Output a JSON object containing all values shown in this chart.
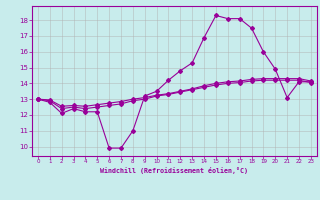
{
  "bg_color": "#c8ecec",
  "line_color": "#990099",
  "grid_color": "#b0b0b0",
  "xlabel": "Windchill (Refroidissement éolien,°C)",
  "x_ticks": [
    0,
    1,
    2,
    3,
    4,
    5,
    6,
    7,
    8,
    9,
    10,
    11,
    12,
    13,
    14,
    15,
    16,
    17,
    18,
    19,
    20,
    21,
    22,
    23
  ],
  "y_ticks": [
    10,
    11,
    12,
    13,
    14,
    15,
    16,
    17,
    18
  ],
  "xlim": [
    -0.5,
    23.5
  ],
  "ylim": [
    9.4,
    18.9
  ],
  "line1_x": [
    0,
    1,
    2,
    3,
    4,
    5,
    6,
    7,
    8,
    9,
    10,
    11,
    12,
    13,
    14,
    15,
    16,
    17,
    18,
    19,
    20,
    21,
    22,
    23
  ],
  "line1_y": [
    13.0,
    12.8,
    12.1,
    12.4,
    12.2,
    12.2,
    9.9,
    9.9,
    11.0,
    13.2,
    13.5,
    14.2,
    14.8,
    15.3,
    16.9,
    18.3,
    18.1,
    18.1,
    17.5,
    16.0,
    14.9,
    13.1,
    14.1,
    14.1
  ],
  "line2_x": [
    0,
    1,
    2,
    3,
    4,
    5,
    6,
    7,
    8,
    9,
    10,
    11,
    12,
    13,
    14,
    15,
    16,
    17,
    18,
    19,
    20,
    21,
    22,
    23
  ],
  "line2_y": [
    13.0,
    12.95,
    12.55,
    12.6,
    12.55,
    12.65,
    12.75,
    12.85,
    13.0,
    13.1,
    13.25,
    13.35,
    13.5,
    13.65,
    13.85,
    14.0,
    14.1,
    14.15,
    14.25,
    14.3,
    14.3,
    14.3,
    14.3,
    14.15
  ],
  "line3_x": [
    0,
    1,
    2,
    3,
    4,
    5,
    6,
    7,
    8,
    9,
    10,
    11,
    12,
    13,
    14,
    15,
    16,
    17,
    18,
    19,
    20,
    21,
    22,
    23
  ],
  "line3_y": [
    13.0,
    12.9,
    12.4,
    12.5,
    12.4,
    12.5,
    12.6,
    12.7,
    12.9,
    13.0,
    13.2,
    13.3,
    13.45,
    13.6,
    13.75,
    13.9,
    14.0,
    14.05,
    14.15,
    14.2,
    14.2,
    14.2,
    14.2,
    14.05
  ]
}
